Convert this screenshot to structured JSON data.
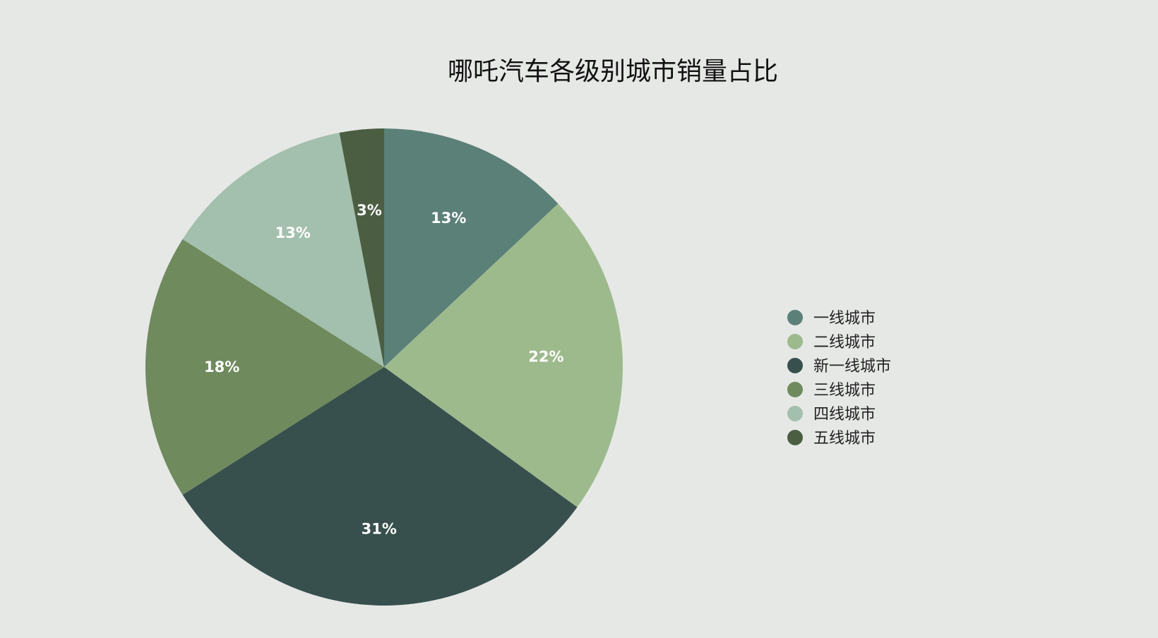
{
  "chart_data": {
    "type": "pie",
    "title": "哪吒汽车各级别城市销量占比",
    "categories": [
      "一线城市",
      "二线城市",
      "新一线城市",
      "三线城市",
      "四线城市",
      "五线城市"
    ],
    "values": [
      13,
      22,
      31,
      18,
      13,
      3
    ],
    "labels": [
      "13%",
      "22%",
      "31%",
      "18%",
      "13%",
      "3%"
    ],
    "colors": [
      "#5b8078",
      "#9dba8d",
      "#37504d",
      "#6f8a5d",
      "#a3bfad",
      "#4b5e41"
    ],
    "start_angle": "12 o'clock",
    "direction": "clockwise",
    "legend_position": "right"
  },
  "page": {
    "background": "#e6e8e6"
  }
}
